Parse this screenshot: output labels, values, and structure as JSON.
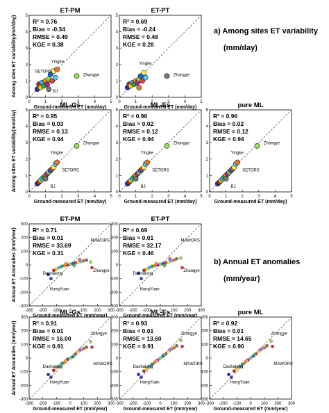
{
  "sections": [
    {
      "heading": "a) Among sites ET variability",
      "unit": "(mm/day)",
      "xlabel": "Ground-measured ET (mm/day)",
      "ylabel": "Among sites ET variability(mm/day)",
      "xlim": [
        0,
        5
      ],
      "ylim": [
        0,
        5
      ],
      "xticks": [
        "0",
        "1",
        "2",
        "3",
        "4",
        "5"
      ],
      "yticks": [
        "0",
        "1",
        "2",
        "3",
        "4",
        "5"
      ]
    },
    {
      "heading": "b) Annual ET anomalies",
      "unit": "(mm/year)",
      "xlabel": "Ground-measured ET (mm/year)",
      "ylabel": "Annual ET Anomalies (mm/year)",
      "xlim": [
        -300,
        300
      ],
      "ylim": [
        -300,
        300
      ],
      "xticks": [
        "-300",
        "-200",
        "-100",
        "0",
        "100",
        "200",
        "300"
      ],
      "yticks": [
        "-300",
        "-200",
        "-100",
        "0",
        "100",
        "200",
        "300"
      ]
    }
  ],
  "chart_data": [
    {
      "type": "scatter",
      "section": 0,
      "title": "ET-PM",
      "stats": {
        "r2": "R² = 0.76",
        "bias": "Bias = -0.34",
        "rmse": "RMSE = 0.49",
        "kge": "KGE = 0.38"
      },
      "labels": [
        "Yingke",
        "SETORS",
        "BJ",
        "Zhangye"
      ],
      "points": [
        [
          0.5,
          0.5
        ],
        [
          0.6,
          0.8
        ],
        [
          0.7,
          0.6
        ],
        [
          0.8,
          0.9
        ],
        [
          0.9,
          0.7
        ],
        [
          1.0,
          1.0
        ],
        [
          1.1,
          0.8
        ],
        [
          1.2,
          1.1
        ],
        [
          1.3,
          1.4
        ],
        [
          1.4,
          1.0
        ],
        [
          1.5,
          1.6
        ],
        [
          1.6,
          1.2
        ],
        [
          1.7,
          1.7
        ],
        [
          1.2,
          0.5
        ],
        [
          2.9,
          1.3
        ]
      ]
    },
    {
      "type": "scatter",
      "section": 0,
      "title": "ET-PT",
      "stats": {
        "r2": "R² = 0.69",
        "bias": "Bias = -0.24",
        "rmse": "RMSE = 0.48",
        "kge": "KGE = 0.28"
      },
      "labels": [
        "Yingke",
        "Zhangye"
      ],
      "points": [
        [
          0.5,
          0.6
        ],
        [
          0.6,
          0.8
        ],
        [
          0.7,
          0.7
        ],
        [
          0.8,
          0.9
        ],
        [
          0.9,
          0.8
        ],
        [
          1.0,
          1.0
        ],
        [
          1.1,
          0.9
        ],
        [
          1.2,
          1.1
        ],
        [
          1.3,
          1.3
        ],
        [
          1.4,
          1.0
        ],
        [
          1.5,
          1.5
        ],
        [
          1.6,
          1.2
        ],
        [
          1.2,
          0.6
        ],
        [
          2.9,
          1.3
        ]
      ]
    },
    {
      "type": "scatter",
      "section": 0,
      "title": "ML-Gs",
      "stats": {
        "r2": "R² = 0.95",
        "bias": "Bias = 0.03",
        "rmse": "RMSE = 0.13",
        "kge": "KGE = 0.94"
      },
      "labels": [
        "Yingke",
        "SETORS",
        "BJ",
        "Zhangye"
      ],
      "points": [
        [
          0.5,
          0.5
        ],
        [
          0.6,
          0.6
        ],
        [
          0.7,
          0.7
        ],
        [
          0.8,
          0.8
        ],
        [
          0.9,
          0.9
        ],
        [
          1.0,
          1.0
        ],
        [
          1.1,
          1.1
        ],
        [
          1.2,
          1.2
        ],
        [
          1.3,
          1.3
        ],
        [
          1.4,
          1.4
        ],
        [
          1.5,
          1.5
        ],
        [
          1.6,
          1.7
        ],
        [
          1.7,
          1.8
        ],
        [
          1.0,
          0.8
        ],
        [
          2.9,
          2.8
        ]
      ]
    },
    {
      "type": "scatter",
      "section": 0,
      "title": "ML-Es",
      "stats": {
        "r2": "R² = 0.96",
        "bias": "Bias = 0.02",
        "rmse": "RMSE = 0.12",
        "kge": "KGE = 0.94"
      },
      "labels": [
        "Yingke",
        "SETORS",
        "BJ",
        "Zhangye"
      ],
      "points": [
        [
          0.5,
          0.5
        ],
        [
          0.6,
          0.6
        ],
        [
          0.7,
          0.7
        ],
        [
          0.8,
          0.8
        ],
        [
          0.9,
          0.9
        ],
        [
          1.0,
          1.0
        ],
        [
          1.1,
          1.1
        ],
        [
          1.2,
          1.2
        ],
        [
          1.3,
          1.3
        ],
        [
          1.4,
          1.4
        ],
        [
          1.5,
          1.5
        ],
        [
          1.6,
          1.7
        ],
        [
          1.7,
          1.8
        ],
        [
          1.0,
          0.8
        ],
        [
          2.9,
          2.8
        ]
      ]
    },
    {
      "type": "scatter",
      "section": 0,
      "title": "pure ML",
      "stats": {
        "r2": "R² = 0.96",
        "bias": "Bias = 0.02",
        "rmse": "RMSE = 0.12",
        "kge": "KGE = 0.94"
      },
      "labels": [
        "Yingke",
        "SETORS",
        "BJ",
        "Zhangye"
      ],
      "points": [
        [
          0.5,
          0.5
        ],
        [
          0.6,
          0.6
        ],
        [
          0.7,
          0.7
        ],
        [
          0.8,
          0.8
        ],
        [
          0.9,
          0.9
        ],
        [
          1.0,
          1.0
        ],
        [
          1.1,
          1.1
        ],
        [
          1.2,
          1.2
        ],
        [
          1.3,
          1.3
        ],
        [
          1.4,
          1.4
        ],
        [
          1.5,
          1.5
        ],
        [
          1.6,
          1.7
        ],
        [
          1.7,
          1.8
        ],
        [
          1.0,
          0.8
        ],
        [
          2.9,
          2.8
        ]
      ]
    },
    {
      "type": "scatter",
      "section": 1,
      "title": "ET-PM",
      "stats": {
        "r2": "R² = 0.71",
        "bias": "Bias = 0.01",
        "rmse": "RMSE = 33.69",
        "kge": "KGE = 0.31"
      },
      "labels": [
        "MAWORS",
        "Zhangye",
        "Dashalong",
        "HongYuan"
      ],
      "points": [
        [
          -160,
          -70
        ],
        [
          -120,
          -40
        ],
        [
          -100,
          -30
        ],
        [
          -80,
          -20
        ],
        [
          -60,
          -10
        ],
        [
          -40,
          -5
        ],
        [
          -20,
          0
        ],
        [
          0,
          5
        ],
        [
          20,
          10
        ],
        [
          40,
          15
        ],
        [
          60,
          20
        ],
        [
          80,
          25
        ],
        [
          100,
          30
        ],
        [
          120,
          35
        ],
        [
          150,
          20
        ],
        [
          -140,
          -100
        ],
        [
          160,
          -20
        ],
        [
          -30,
          10
        ],
        [
          30,
          -5
        ],
        [
          70,
          40
        ]
      ]
    },
    {
      "type": "scatter",
      "section": 1,
      "title": "ET-PT",
      "stats": {
        "r2": "R² = 0.69",
        "bias": "Bias = 0.01",
        "rmse": "RMSE = 32.17",
        "kge": "KGE = 0.46"
      },
      "labels": [
        "MAWORS",
        "Zhangye",
        "Dashalong",
        "HongYuan"
      ],
      "points": [
        [
          -160,
          -60
        ],
        [
          -120,
          -40
        ],
        [
          -100,
          -30
        ],
        [
          -80,
          -20
        ],
        [
          -60,
          -10
        ],
        [
          -40,
          -5
        ],
        [
          -20,
          0
        ],
        [
          0,
          5
        ],
        [
          20,
          10
        ],
        [
          40,
          15
        ],
        [
          60,
          20
        ],
        [
          80,
          30
        ],
        [
          100,
          35
        ],
        [
          120,
          45
        ],
        [
          150,
          50
        ],
        [
          -140,
          -100
        ],
        [
          160,
          -20
        ],
        [
          -30,
          10
        ],
        [
          30,
          -5
        ],
        [
          70,
          45
        ]
      ]
    },
    {
      "type": "scatter",
      "section": 1,
      "title": "ML-Gs",
      "stats": {
        "r2": "R² = 0.91",
        "bias": "Bias = 0.01",
        "rmse": "RMSE = 16.00",
        "kge": "KGE = 0.91"
      },
      "labels": [
        "Zhangye",
        "MAWORS",
        "Dashalong",
        "HongYuan"
      ],
      "points": [
        [
          -160,
          -120
        ],
        [
          -120,
          -90
        ],
        [
          -100,
          -70
        ],
        [
          -80,
          -60
        ],
        [
          -60,
          -40
        ],
        [
          -40,
          -30
        ],
        [
          -20,
          -10
        ],
        [
          0,
          0
        ],
        [
          20,
          10
        ],
        [
          40,
          30
        ],
        [
          60,
          50
        ],
        [
          80,
          60
        ],
        [
          100,
          70
        ],
        [
          120,
          80
        ],
        [
          150,
          120
        ],
        [
          -140,
          -140
        ],
        [
          160,
          80
        ],
        [
          -30,
          -20
        ],
        [
          30,
          20
        ],
        [
          70,
          60
        ]
      ]
    },
    {
      "type": "scatter",
      "section": 1,
      "title": "ML-Es",
      "stats": {
        "r2": "R² = 0.93",
        "bias": "Bias = 0.01",
        "rmse": "RMSE = 13.60",
        "kge": "KGE = 0.91"
      },
      "labels": [
        "Zhangye",
        "MAWORS",
        "Dashalong",
        "HongYuan"
      ],
      "points": [
        [
          -160,
          -120
        ],
        [
          -120,
          -95
        ],
        [
          -100,
          -75
        ],
        [
          -80,
          -60
        ],
        [
          -60,
          -45
        ],
        [
          -40,
          -30
        ],
        [
          -20,
          -15
        ],
        [
          0,
          0
        ],
        [
          20,
          15
        ],
        [
          40,
          30
        ],
        [
          60,
          50
        ],
        [
          80,
          65
        ],
        [
          100,
          75
        ],
        [
          120,
          90
        ],
        [
          150,
          130
        ],
        [
          -140,
          -140
        ],
        [
          160,
          85
        ],
        [
          -30,
          -20
        ],
        [
          30,
          25
        ],
        [
          70,
          60
        ]
      ]
    },
    {
      "type": "scatter",
      "section": 1,
      "title": "pure ML",
      "stats": {
        "r2": "R² = 0.92",
        "bias": "Bias = 0.01",
        "rmse": "RMSE = 14.65",
        "kge": "KGE = 0.90"
      },
      "labels": [
        "Zhangye",
        "MAWORS",
        "Dashalong",
        "HongYuan"
      ],
      "points": [
        [
          -160,
          -120
        ],
        [
          -120,
          -95
        ],
        [
          -100,
          -75
        ],
        [
          -80,
          -60
        ],
        [
          -60,
          -45
        ],
        [
          -40,
          -30
        ],
        [
          -20,
          -15
        ],
        [
          0,
          0
        ],
        [
          20,
          15
        ],
        [
          40,
          30
        ],
        [
          60,
          50
        ],
        [
          80,
          65
        ],
        [
          100,
          75
        ],
        [
          120,
          90
        ],
        [
          150,
          125
        ],
        [
          -140,
          -140
        ],
        [
          160,
          85
        ],
        [
          -30,
          -20
        ],
        [
          30,
          25
        ],
        [
          70,
          60
        ]
      ]
    }
  ],
  "point_colors": [
    "#2233aa",
    "#cc2222",
    "#ffcc00",
    "#33bbee",
    "#22aa44",
    "#ff8800",
    "#aa22aa",
    "#88dd44",
    "#1166dd",
    "#dd4444",
    "#ffee55",
    "#55ccff",
    "#ee7722",
    "#777777",
    "#99dd55",
    "#3344cc",
    "#dd3333",
    "#f4a460",
    "#66bb66",
    "#cc66cc"
  ]
}
